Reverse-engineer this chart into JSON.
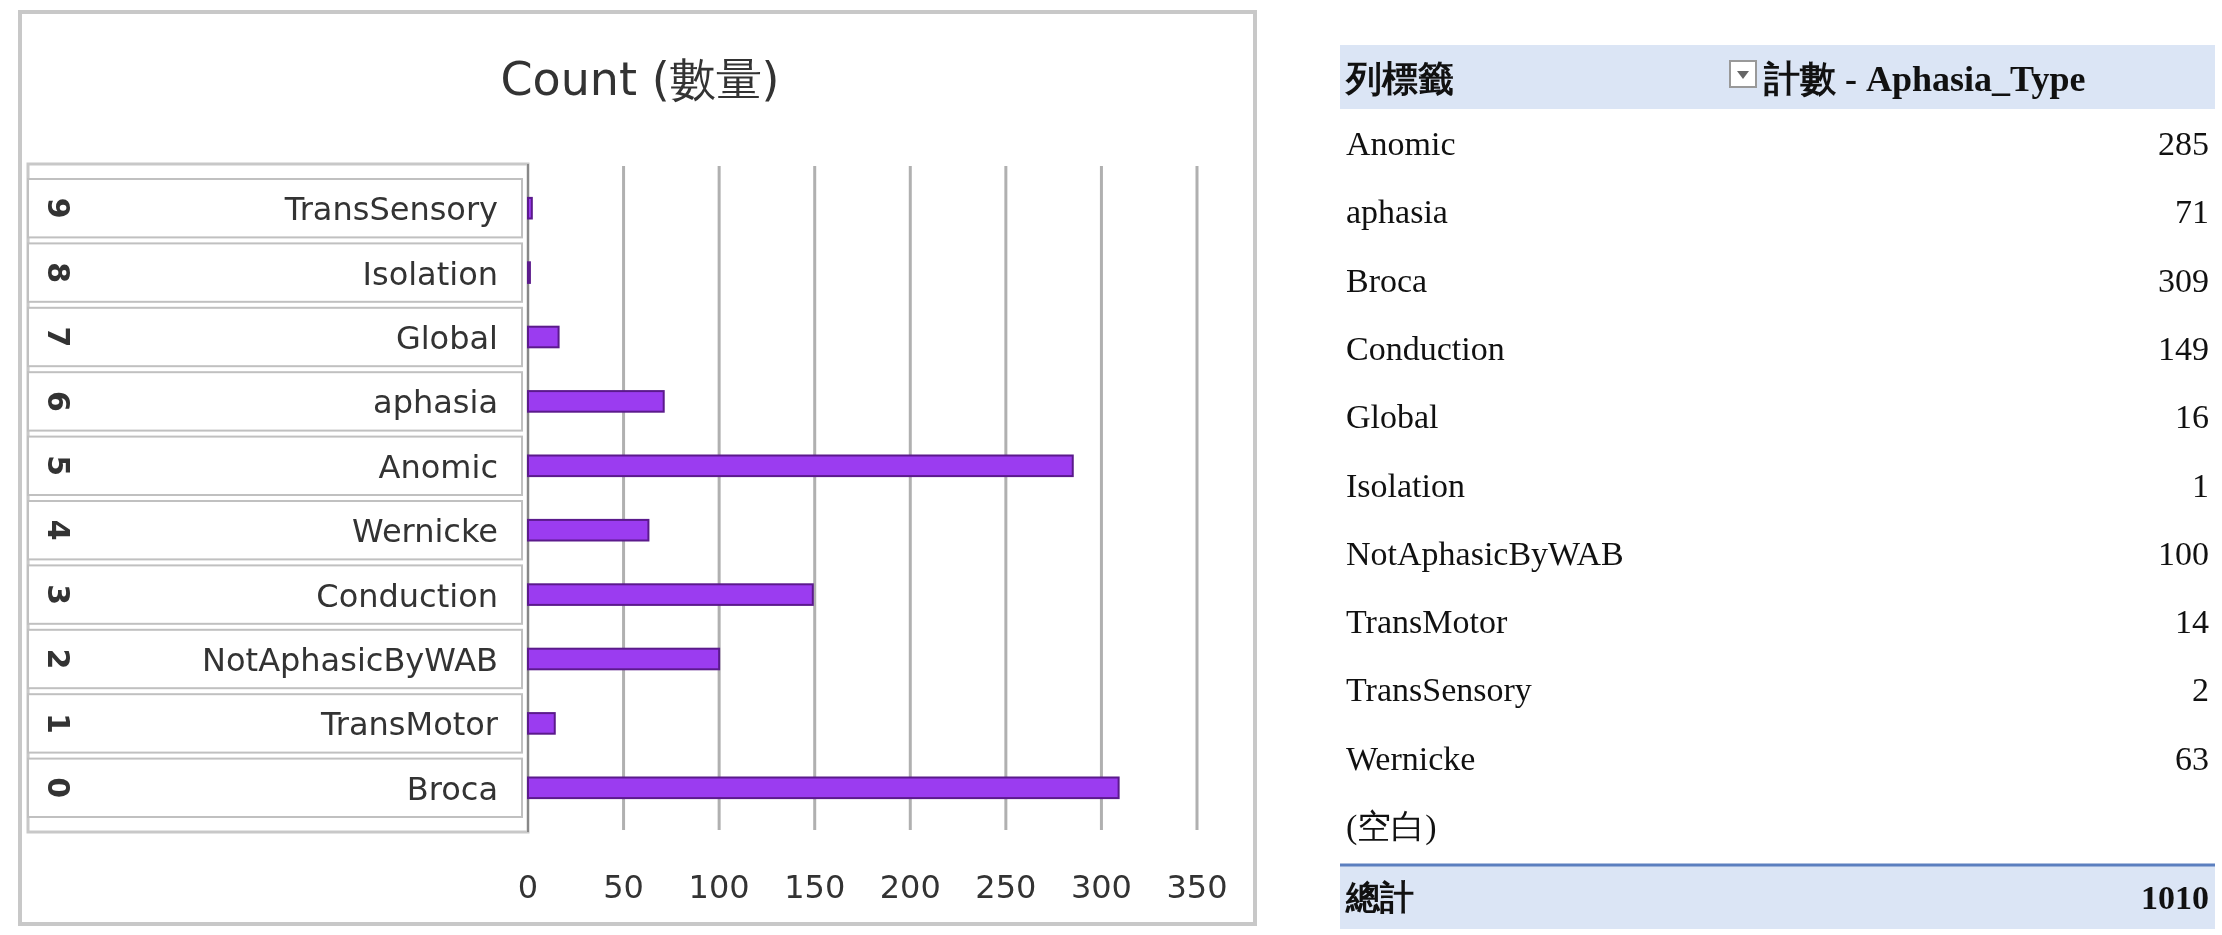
{
  "chart_data": [
    {
      "type": "bar",
      "orientation": "horizontal",
      "title": "Count (數量)",
      "categories": [
        "TransSensory",
        "Isolation",
        "Global",
        "aphasia",
        "Anomic",
        "Wernicke",
        "Conduction",
        "NotAphasicByWAB",
        "TransMotor",
        "Broca"
      ],
      "values": [
        2,
        1,
        16,
        71,
        285,
        63,
        149,
        100,
        14,
        309
      ],
      "color": "#9b3cf0",
      "xlim": [
        0,
        350
      ],
      "xticks": [
        0,
        50,
        100,
        150,
        200,
        250,
        300,
        350
      ],
      "grid": "x",
      "annotations": [
        "9",
        "8",
        "7",
        "6",
        "5",
        "4",
        "3",
        "2",
        "1",
        "0"
      ]
    },
    {
      "type": "other",
      "xlabel": "列標籤",
      "ylabel": "計數 - Aphasia_Type",
      "categories": [
        "Anomic",
        "aphasia",
        "Broca",
        "Conduction",
        "Global",
        "Isolation",
        "NotAphasicByWAB",
        "TransMotor",
        "TransSensory",
        "Wernicke",
        "(空白)",
        "總計"
      ],
      "values": [
        285,
        71,
        309,
        149,
        16,
        1,
        100,
        14,
        2,
        63,
        null,
        1010
      ],
      "data_labels": true
    }
  ]
}
